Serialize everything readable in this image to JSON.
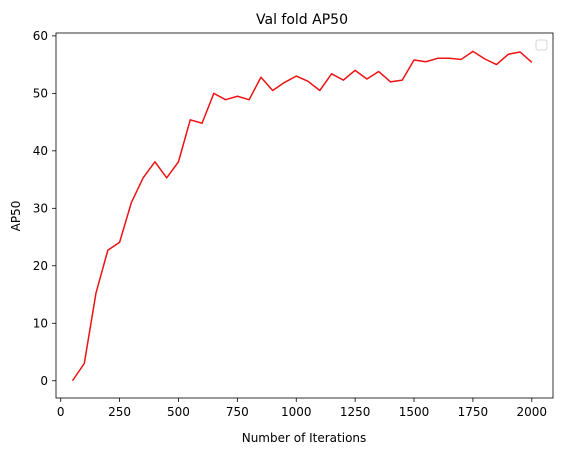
{
  "chart_data": {
    "type": "line",
    "title": "Val fold AP50",
    "xlabel": "Number of Iterations",
    "ylabel": "AP50",
    "xlim": [
      -20,
      2090
    ],
    "ylim": [
      -3,
      60.5
    ],
    "xticks": [
      0,
      250,
      500,
      750,
      1000,
      1250,
      1500,
      1750,
      2000
    ],
    "yticks": [
      0,
      10,
      20,
      30,
      40,
      50,
      60
    ],
    "grid": false,
    "legend": "top-right (empty)",
    "series": [
      {
        "color": "#ee1111",
        "x": [
          50,
          100,
          150,
          200,
          250,
          300,
          350,
          400,
          450,
          500,
          550,
          600,
          650,
          700,
          750,
          800,
          850,
          900,
          950,
          1000,
          1050,
          1100,
          1150,
          1200,
          1250,
          1300,
          1350,
          1400,
          1450,
          1500,
          1550,
          1600,
          1650,
          1700,
          1750,
          1800,
          1850,
          1900,
          1950,
          2000
        ],
        "y": [
          0,
          3,
          15.3,
          22.7,
          24.1,
          31.0,
          35.3,
          38.1,
          35.3,
          38.1,
          45.4,
          44.8,
          50.0,
          48.9,
          49.5,
          48.9,
          52.8,
          50.5,
          51.9,
          53.0,
          52.1,
          50.5,
          53.4,
          52.3,
          54.0,
          52.5,
          53.8,
          52.0,
          52.3,
          55.8,
          55.5,
          56.1,
          56.1,
          55.9,
          57.3,
          56.0,
          55.0,
          56.8,
          57.2,
          55.4
        ]
      }
    ]
  }
}
